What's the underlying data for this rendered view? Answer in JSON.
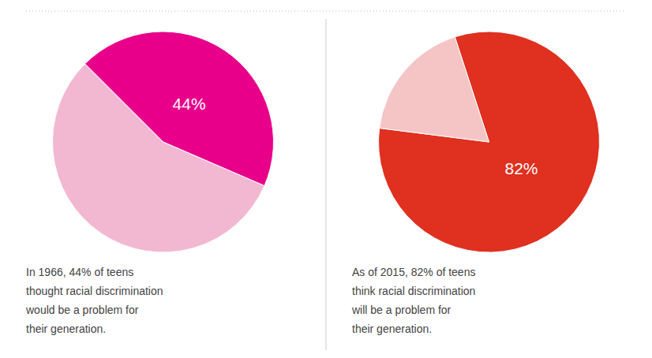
{
  "chart_data": [
    {
      "type": "pie",
      "values": [
        44,
        56
      ],
      "colors": [
        "#E8008A",
        "#F2B8D2"
      ],
      "value_labels": [
        "44%",
        null
      ],
      "annotations": [
        "In 1966, 44% of teens\nthought racial discrimination\nwould be a problem for\ntheir generation."
      ]
    },
    {
      "type": "pie",
      "values": [
        82,
        18
      ],
      "colors": [
        "#E03020",
        "#F5C5C5"
      ],
      "value_labels": [
        "82%",
        null
      ],
      "annotations": [
        "As of 2015, 82% of teens\nthink racial discrimination\nwill be a problem for\ntheir generation."
      ]
    }
  ]
}
